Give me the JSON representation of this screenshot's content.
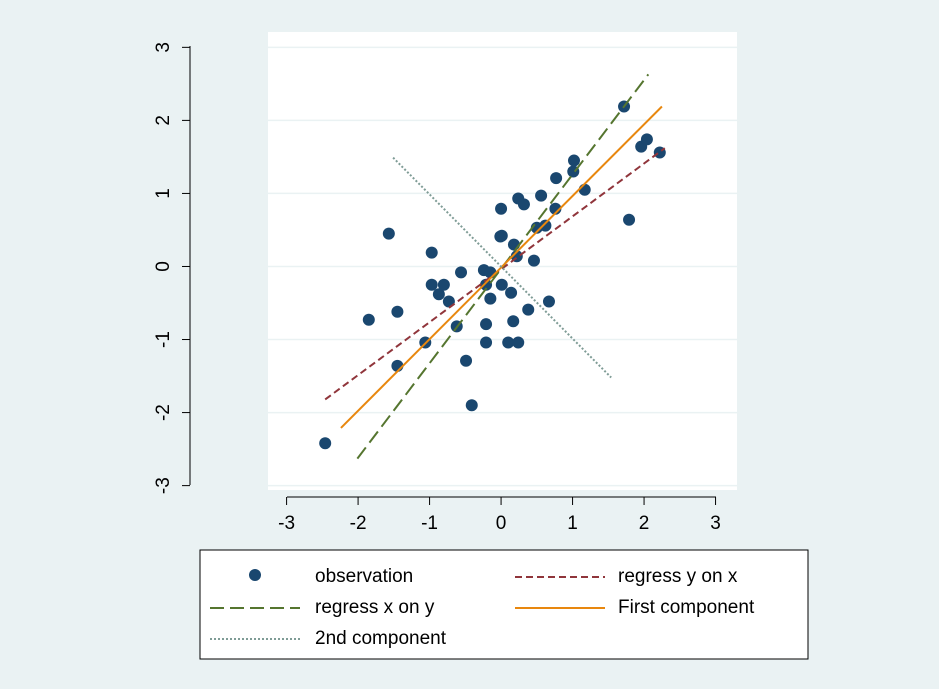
{
  "chart_data": {
    "type": "scatter",
    "xlim": [
      -3.26,
      3.3
    ],
    "ylim": [
      -3.06,
      3.21
    ],
    "xticks": [
      -3,
      -2,
      -1,
      0,
      1,
      2,
      3
    ],
    "yticks": [
      -3,
      -2,
      -1,
      0,
      1,
      2,
      3
    ],
    "grid": true,
    "legend_position": "bottom",
    "series": [
      {
        "name": "observation",
        "type": "scatter",
        "color": "#1a476f",
        "x": [
          -2.46,
          -1.85,
          -1.57,
          -1.45,
          -1.45,
          -1.06,
          -0.97,
          -0.97,
          -0.87,
          -0.8,
          -0.73,
          -0.62,
          -0.56,
          -0.49,
          -0.41,
          -0.24,
          -0.21,
          -0.21,
          -0.21,
          -0.15,
          -0.15,
          -0.01,
          0.0,
          0.01,
          0.01,
          0.1,
          0.14,
          0.17,
          0.18,
          0.22,
          0.24,
          0.24,
          0.32,
          0.38,
          0.46,
          0.5,
          0.56,
          0.62,
          0.67,
          0.76,
          0.77,
          1.01,
          1.02,
          1.17,
          1.72,
          1.79,
          1.96,
          2.04,
          2.22
        ],
        "values": [
          -2.42,
          -0.73,
          0.45,
          -0.62,
          -1.36,
          -1.04,
          0.19,
          -0.25,
          -0.38,
          -0.25,
          -0.48,
          -0.82,
          -0.08,
          -1.29,
          -1.9,
          -0.05,
          -0.25,
          -0.79,
          -1.04,
          -0.44,
          -0.08,
          0.41,
          0.79,
          0.42,
          -0.25,
          -1.04,
          -0.36,
          -0.75,
          0.3,
          0.14,
          -1.04,
          0.93,
          0.85,
          -0.59,
          0.08,
          0.53,
          0.97,
          0.56,
          -0.48,
          0.79,
          1.21,
          1.3,
          1.45,
          1.05,
          2.19,
          0.64,
          1.64,
          1.74,
          1.56
        ]
      },
      {
        "name": "regress y on x",
        "type": "line",
        "color": "#90353b",
        "dash": "7 4",
        "x": [
          -2.46,
          2.29
        ],
        "values": [
          -1.82,
          1.62
        ]
      },
      {
        "name": "regress x on y",
        "type": "line",
        "color": "#55752f",
        "dash": "14 6",
        "x": [
          -2.01,
          2.06
        ],
        "values": [
          -2.63,
          2.63
        ]
      },
      {
        "name": "First component",
        "type": "line",
        "color": "#e8870e",
        "dash": "none",
        "x": [
          -2.24,
          2.25
        ],
        "values": [
          -2.21,
          2.19
        ]
      },
      {
        "name": "2nd component",
        "type": "line",
        "color": "#7f9c96",
        "dash": "2 2",
        "x": [
          -1.51,
          1.54
        ],
        "values": [
          1.49,
          -1.52
        ]
      }
    ]
  }
}
